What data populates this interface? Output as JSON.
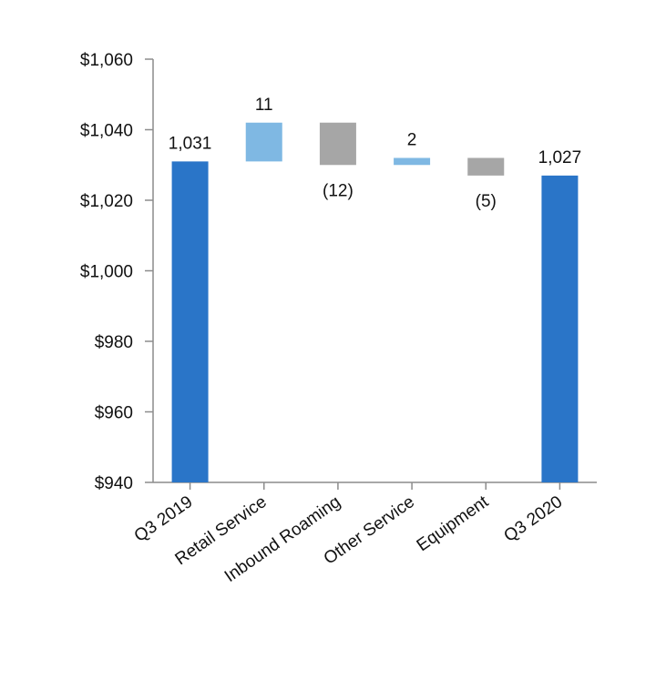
{
  "chart_data": {
    "type": "waterfall",
    "categories": [
      "Q3 2019",
      "Retail Service",
      "Inbound Roaming",
      "Other Service",
      "Equipment",
      "Q3 2020"
    ],
    "measures": [
      "total",
      "relative",
      "relative",
      "relative",
      "relative",
      "total"
    ],
    "values": [
      1031,
      11,
      -12,
      2,
      -5,
      1027
    ],
    "value_labels": [
      "1,031",
      "11",
      "(12)",
      "2",
      "(5)",
      "1,027"
    ],
    "colors": [
      "#2a75c8",
      "#7fb8e3",
      "#a6a6a6",
      "#7fb8e3",
      "#a6a6a6",
      "#2a75c8"
    ],
    "ylim": [
      940,
      1060
    ],
    "yticks": [
      {
        "value": 940,
        "label": "$940"
      },
      {
        "value": 960,
        "label": "$960"
      },
      {
        "value": 980,
        "label": "$980"
      },
      {
        "value": 1000,
        "label": "$1,000"
      },
      {
        "value": 1020,
        "label": "$1,020"
      },
      {
        "value": 1040,
        "label": "$1,040"
      },
      {
        "value": 1060,
        "label": "$1,060"
      }
    ],
    "grid": false
  }
}
